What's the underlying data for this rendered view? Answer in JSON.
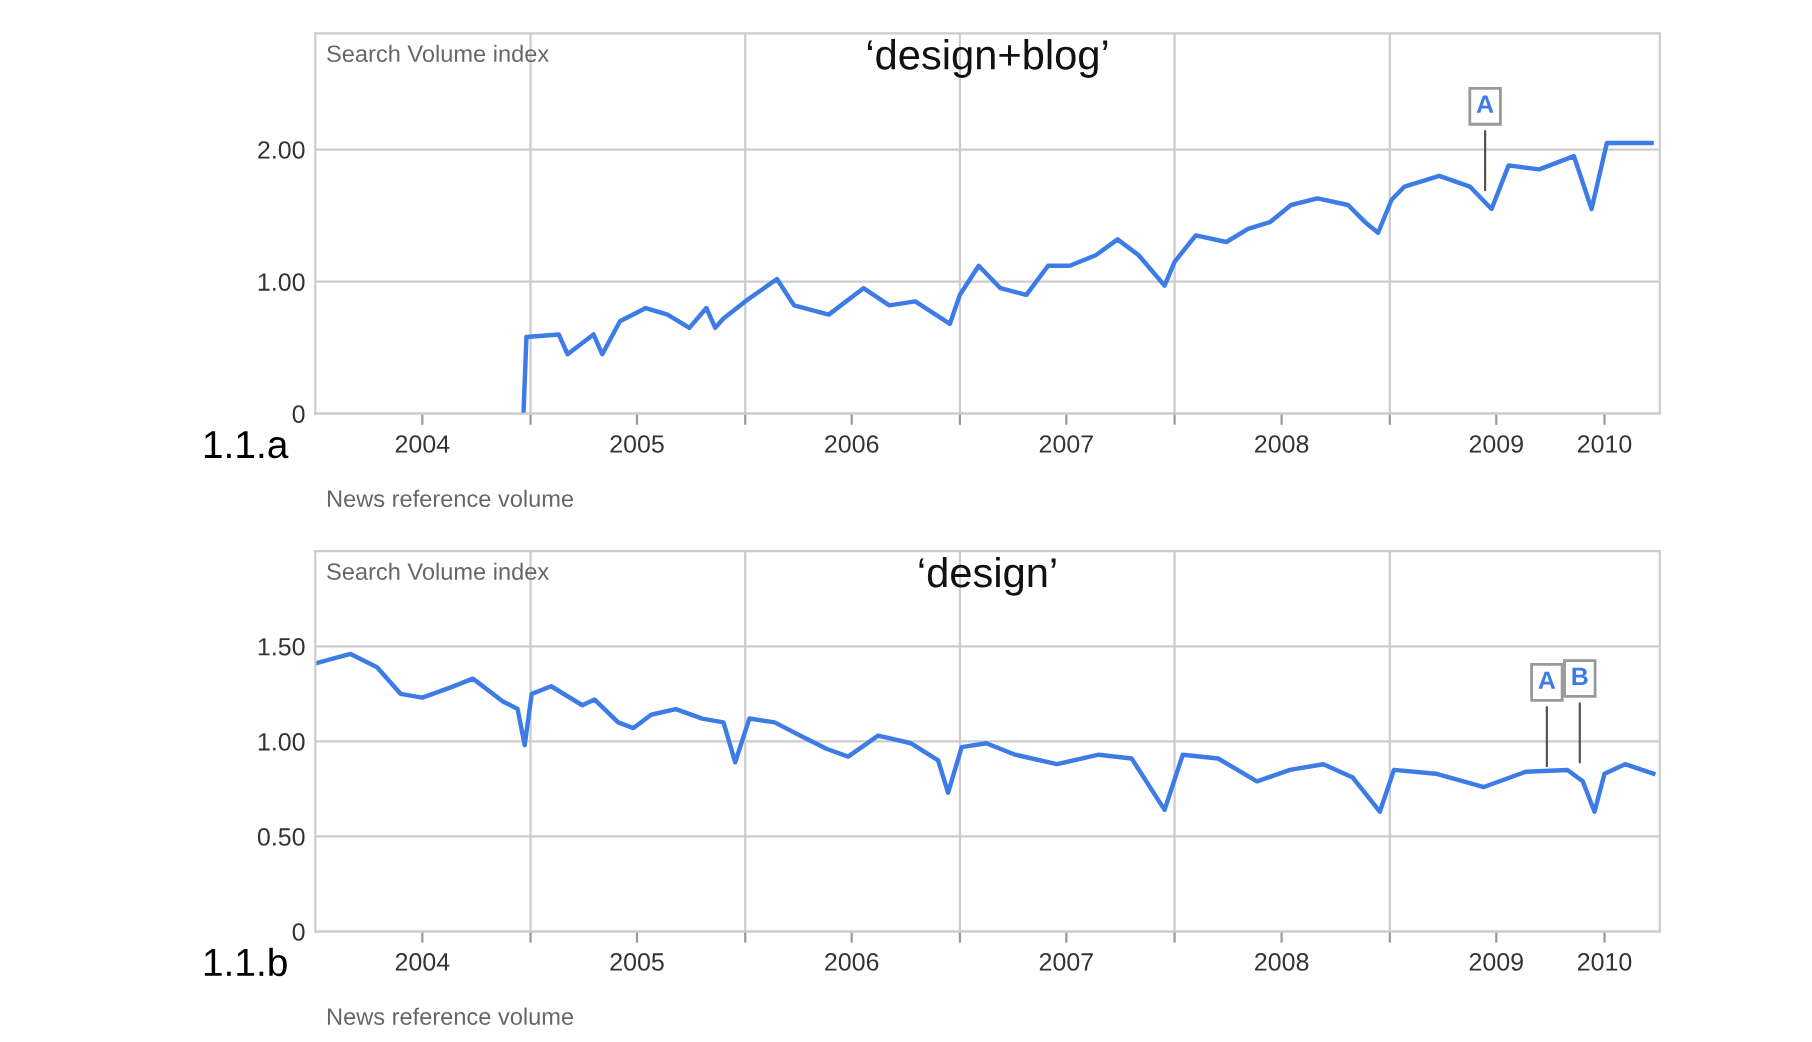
{
  "chart_data": [
    {
      "type": "line",
      "title": "‘design+blog’",
      "ylabel": "Search Volume index",
      "grid": true,
      "marker": "none",
      "line_style": "solid",
      "xlim": [
        "2004-01-01",
        "2010-04-05"
      ],
      "xticks": [
        {
          "value": "2004-07-01",
          "label": "2004"
        },
        {
          "value": "2005-01-01",
          "label": null
        },
        {
          "value": "2005-07-01",
          "label": "2005"
        },
        {
          "value": "2006-01-01",
          "label": null
        },
        {
          "value": "2006-07-01",
          "label": "2006"
        },
        {
          "value": "2007-01-01",
          "label": null
        },
        {
          "value": "2007-07-01",
          "label": "2007"
        },
        {
          "value": "2008-01-01",
          "label": null
        },
        {
          "value": "2008-07-01",
          "label": "2008"
        },
        {
          "value": "2009-01-01",
          "label": null
        },
        {
          "value": "2009-07-01",
          "label": "2009"
        },
        {
          "value": "2010-01-01",
          "label": "2010"
        }
      ],
      "ylim": [
        0,
        2.88
      ],
      "yticks": [
        0,
        {
          "value": 1,
          "label": "1.00"
        },
        {
          "value": 2,
          "label": "2.00"
        }
      ],
      "series": [
        {
          "color": "#3d7ce6",
          "x": [
            "2004-12-20",
            "2004-12-25",
            "2005-02-18",
            "2005-03-05",
            "2005-04-18",
            "2005-05-03",
            "2005-06-02",
            "2005-07-16",
            "2005-08-22",
            "2005-09-28",
            "2005-10-27",
            "2005-11-11",
            "2005-11-25",
            "2006-01-01",
            "2006-02-24",
            "2006-03-25",
            "2006-05-23",
            "2006-07-21",
            "2006-09-03",
            "2006-10-17",
            "2006-12-15",
            "2007-01-01",
            "2007-02-02",
            "2007-03-11",
            "2007-04-24",
            "2007-05-31",
            "2007-07-07",
            "2007-08-20",
            "2007-09-26",
            "2007-11-01",
            "2007-12-15",
            "2008-01-01",
            "2008-02-06",
            "2008-03-29",
            "2008-05-05",
            "2008-06-11",
            "2008-07-17",
            "2008-08-31",
            "2008-10-22",
            "2008-11-20",
            "2008-12-12",
            "2009-01-04",
            "2009-01-26",
            "2009-03-26",
            "2009-05-17",
            "2009-06-23",
            "2009-07-22",
            "2009-09-12",
            "2009-11-10",
            "2009-12-10",
            "2010-01-05",
            "2010-03-22"
          ],
          "values": [
            0,
            0.58,
            0.6,
            0.45,
            0.6,
            0.45,
            0.7,
            0.8,
            0.75,
            0.65,
            0.8,
            0.65,
            0.72,
            0.85,
            1.02,
            0.82,
            0.75,
            0.95,
            0.82,
            0.85,
            0.68,
            0.9,
            1.12,
            0.95,
            0.9,
            1.12,
            1.12,
            1.2,
            1.32,
            1.2,
            0.97,
            1.15,
            1.35,
            1.3,
            1.4,
            1.45,
            1.58,
            1.63,
            1.58,
            1.45,
            1.37,
            1.62,
            1.72,
            1.8,
            1.72,
            1.55,
            1.88,
            1.85,
            1.95,
            1.55,
            2.05,
            2.05
          ]
        }
      ],
      "annotations": [
        "1.1.a",
        "News reference volume",
        {
          "text": "A",
          "x": "2009-06-12",
          "y": 1.65
        }
      ]
    },
    {
      "type": "line",
      "title": "‘design’",
      "ylabel": "Search Volume index",
      "grid": true,
      "marker": "none",
      "line_style": "solid",
      "xlim": [
        "2004-01-01",
        "2010-04-05"
      ],
      "xticks": [
        {
          "value": "2004-07-01",
          "label": "2004"
        },
        {
          "value": "2005-01-01",
          "label": null
        },
        {
          "value": "2005-07-01",
          "label": "2005"
        },
        {
          "value": "2006-01-01",
          "label": null
        },
        {
          "value": "2006-07-01",
          "label": "2006"
        },
        {
          "value": "2007-01-01",
          "label": null
        },
        {
          "value": "2007-07-01",
          "label": "2007"
        },
        {
          "value": "2008-01-01",
          "label": null
        },
        {
          "value": "2008-07-01",
          "label": "2008"
        },
        {
          "value": "2009-01-01",
          "label": null
        },
        {
          "value": "2009-07-01",
          "label": "2009"
        },
        {
          "value": "2010-01-01",
          "label": "2010"
        }
      ],
      "ylim": [
        0,
        2.0
      ],
      "yticks": [
        0,
        {
          "value": 0.5,
          "label": "0.50"
        },
        {
          "value": 1,
          "label": "1.00"
        },
        {
          "value": 1.5,
          "label": "1.50"
        }
      ],
      "series": [
        {
          "color": "#3d7ce6",
          "x": [
            "2004-01-01",
            "2004-03-01",
            "2004-04-15",
            "2004-05-25",
            "2004-07-01",
            "2004-08-15",
            "2004-09-25",
            "2004-11-15",
            "2004-12-10",
            "2004-12-22",
            "2005-01-03",
            "2005-02-05",
            "2005-03-30",
            "2005-04-20",
            "2005-05-30",
            "2005-06-25",
            "2005-07-25",
            "2005-09-05",
            "2005-10-20",
            "2005-11-25",
            "2005-12-15",
            "2006-01-08",
            "2006-02-20",
            "2006-04-05",
            "2006-05-20",
            "2006-06-25",
            "2006-08-15",
            "2006-10-10",
            "2006-11-25",
            "2006-12-12",
            "2007-01-04",
            "2007-02-15",
            "2007-04-05",
            "2007-06-15",
            "2007-08-25",
            "2007-10-20",
            "2007-12-15",
            "2008-01-15",
            "2008-03-15",
            "2008-05-20",
            "2008-07-15",
            "2008-09-10",
            "2008-10-30",
            "2008-12-15",
            "2009-01-08",
            "2009-03-20",
            "2009-06-10",
            "2009-08-20",
            "2009-10-30",
            "2009-11-25",
            "2009-12-15",
            "2010-01-01",
            "2010-02-05",
            "2010-03-25"
          ],
          "values": [
            1.41,
            1.46,
            1.39,
            1.25,
            1.23,
            1.28,
            1.33,
            1.21,
            1.17,
            0.98,
            1.25,
            1.29,
            1.19,
            1.22,
            1.1,
            1.07,
            1.14,
            1.17,
            1.12,
            1.1,
            0.89,
            1.12,
            1.1,
            1.03,
            0.96,
            0.92,
            1.03,
            0.99,
            0.9,
            0.73,
            0.97,
            0.99,
            0.93,
            0.88,
            0.93,
            0.91,
            0.64,
            0.93,
            0.91,
            0.79,
            0.85,
            0.88,
            0.81,
            0.63,
            0.85,
            0.83,
            0.76,
            0.84,
            0.85,
            0.79,
            0.63,
            0.83,
            0.88,
            0.83
          ]
        }
      ],
      "annotations": [
        "1.1.b",
        "News reference volume",
        {
          "text": "A",
          "x": "2009-09-25",
          "y": 0.84
        },
        {
          "text": "B",
          "x": "2009-11-20",
          "y": 0.86
        }
      ]
    }
  ]
}
